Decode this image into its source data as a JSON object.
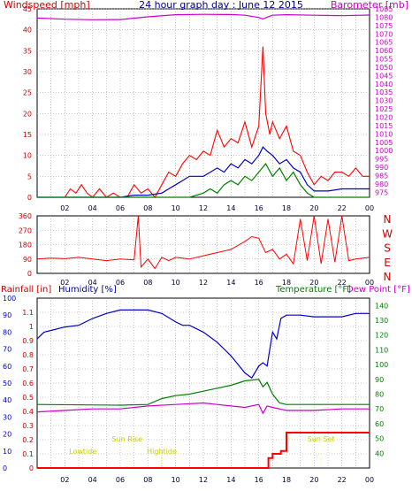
{
  "chart_data": [
    {
      "id": "wind-baro",
      "type": "line",
      "title": "24 hour graph day : June 12 2015",
      "left_axis_label": "Windspeed [mph]",
      "right_axis_label": "Barometer [mb]",
      "xlabels": [
        "02",
        "04",
        "06",
        "08",
        "10",
        "12",
        "14",
        "16",
        "18",
        "20",
        "22",
        "00"
      ],
      "x_range": [
        0,
        24
      ],
      "y_left_range": [
        0,
        45
      ],
      "y_left_ticks": [
        "0",
        "5",
        "10",
        "15",
        "20",
        "25",
        "30",
        "35",
        "40",
        "45"
      ],
      "y_right_range": [
        972,
        1085
      ],
      "y_right_ticks": [
        "975",
        "980",
        "985",
        "990",
        "995",
        "1000",
        "1005",
        "1010",
        "1015",
        "1020",
        "1025",
        "1030",
        "1035",
        "1040",
        "1045",
        "1050",
        "1055",
        "1060",
        "1065",
        "1070",
        "1075",
        "1080",
        "1085"
      ],
      "colors": {
        "gust": "#ff0000",
        "average": "#0000cc",
        "low": "#008000",
        "barometer": "#cc00cc"
      },
      "series": [
        {
          "key": "gust",
          "x": [
            0,
            2,
            2.4,
            2.8,
            3.2,
            3.6,
            4,
            4.5,
            5,
            5.5,
            6,
            6.5,
            7,
            7.5,
            8,
            8.5,
            9,
            9.5,
            10,
            10.5,
            11,
            11.5,
            12,
            12.5,
            13,
            13.5,
            14,
            14.5,
            15,
            15.5,
            16,
            16.3,
            16.5,
            16.8,
            17,
            17.5,
            18,
            18.5,
            19,
            19.5,
            20,
            20.5,
            21,
            21.5,
            22,
            22.5,
            23,
            23.5,
            24
          ],
          "values": [
            0,
            0,
            2,
            1,
            3,
            1,
            0,
            2,
            0,
            1,
            0,
            0,
            3,
            1,
            2,
            0,
            3,
            6,
            5,
            8,
            10,
            9,
            11,
            10,
            16,
            12,
            14,
            13,
            18,
            12,
            17,
            36,
            20,
            15,
            18,
            14,
            17,
            11,
            10,
            6,
            3,
            5,
            4,
            6,
            6,
            5,
            7,
            5,
            5
          ]
        },
        {
          "key": "average",
          "x": [
            0,
            3,
            5,
            6,
            7,
            8,
            9,
            9.5,
            10,
            10.5,
            11,
            12,
            12.5,
            13,
            13.5,
            14,
            14.5,
            15,
            15.5,
            16,
            16.3,
            16.6,
            17,
            17.5,
            18,
            18.5,
            19,
            19.5,
            20,
            21,
            22,
            23,
            24
          ],
          "values": [
            0,
            0,
            0,
            0,
            0.5,
            0.5,
            1,
            2,
            3,
            4,
            5,
            5,
            6,
            7,
            6,
            8,
            7,
            9,
            8,
            10,
            12,
            11,
            10,
            8,
            9,
            7,
            6,
            3,
            1.5,
            1.5,
            2,
            2,
            2
          ]
        },
        {
          "key": "low",
          "x": [
            0,
            8,
            10,
            11,
            12,
            12.5,
            13,
            13.5,
            14,
            14.5,
            15,
            15.5,
            16,
            16.5,
            17,
            17.5,
            18,
            18.5,
            19,
            19.5,
            20,
            24
          ],
          "values": [
            0,
            0,
            0,
            0,
            1,
            2,
            1,
            3,
            4,
            3,
            5,
            4,
            6,
            8,
            5,
            7,
            4,
            6,
            3,
            1,
            0,
            0
          ]
        },
        {
          "key": "barometer",
          "x": [
            0,
            2,
            4,
            6,
            8,
            10,
            12,
            14,
            15,
            16,
            16.3,
            16.6,
            17,
            18,
            20,
            22,
            24
          ],
          "values": [
            1079.5,
            1078.8,
            1078.5,
            1078.6,
            1080.2,
            1081.5,
            1081.7,
            1081.6,
            1081.2,
            1079.8,
            1078.9,
            1080.0,
            1081.2,
            1081.5,
            1081.2,
            1080.9,
            1081.3
          ]
        }
      ]
    },
    {
      "id": "wind-dir",
      "type": "line",
      "xlabels": [
        "02",
        "04",
        "06",
        "08",
        "10",
        "12",
        "14",
        "16",
        "18",
        "20",
        "22",
        "00"
      ],
      "x_range": [
        0,
        24
      ],
      "y_range": [
        0,
        360
      ],
      "y_ticks": [
        "0",
        "90",
        "180",
        "270",
        "360"
      ],
      "compass_labels": [
        "N",
        "W",
        "S",
        "E",
        "N"
      ],
      "color": "#ff0000",
      "series": [
        {
          "key": "direction",
          "x": [
            0,
            1,
            2,
            3,
            4,
            5,
            6,
            7,
            7.3,
            7.5,
            8,
            8.5,
            9,
            9.5,
            10,
            11,
            12,
            13,
            14,
            15,
            15.5,
            16,
            16.5,
            17,
            17.5,
            18,
            18.5,
            19,
            19.5,
            20,
            20.5,
            21,
            21.5,
            22,
            22.5,
            23,
            24
          ],
          "values": [
            90,
            95,
            92,
            100,
            90,
            80,
            90,
            85,
            360,
            40,
            90,
            30,
            100,
            80,
            100,
            90,
            110,
            130,
            150,
            200,
            230,
            220,
            130,
            150,
            90,
            120,
            60,
            340,
            80,
            360,
            60,
            340,
            70,
            360,
            80,
            90,
            100
          ]
        }
      ]
    },
    {
      "id": "rain-hum-temp",
      "type": "line",
      "left_axis1_label": "Rainfall [in]",
      "left_axis2_label": "Humidity [%]",
      "right_axis1_label": "Temperature [°F]",
      "right_axis2_label": "Dew Point [°F]",
      "xlabels": [
        "02",
        "04",
        "06",
        "08",
        "10",
        "12",
        "14",
        "16",
        "18",
        "20",
        "22",
        "00"
      ],
      "x_range": [
        0,
        24
      ],
      "rain_range": [
        0,
        1.2
      ],
      "rain_ticks": [
        "0",
        "0.1",
        "0.2",
        "0.3",
        "0.4",
        "0.5",
        "0.6",
        "0.7",
        "0.8",
        "0.9",
        "1",
        "1.1"
      ],
      "humidity_range": [
        0,
        100
      ],
      "humidity_ticks": [
        "0",
        "10",
        "20",
        "30",
        "40",
        "50",
        "60",
        "70",
        "80",
        "90",
        "100"
      ],
      "temp_range": [
        30,
        145
      ],
      "temp_ticks": [
        "40",
        "50",
        "60",
        "70",
        "80",
        "90",
        "100",
        "110",
        "120",
        "130",
        "140"
      ],
      "annotations": [
        {
          "text": "Lowtide",
          "x": 3.3
        },
        {
          "text": "Sun Rise",
          "x": 6.5
        },
        {
          "text": "Hightide",
          "x": 9.0
        },
        {
          "text": "Sun Set",
          "x": 20.5
        }
      ],
      "colors": {
        "rainfall": "#ff0000",
        "humidity": "#0000cc",
        "temperature": "#008000",
        "dewpoint": "#cc00cc"
      },
      "series": [
        {
          "key": "rainfall",
          "x": [
            0,
            16.5,
            16.7,
            17,
            17.3,
            17.6,
            18,
            24
          ],
          "values": [
            0,
            0,
            0.07,
            0.1,
            0.1,
            0.12,
            0.25,
            0.25
          ]
        },
        {
          "key": "humidity",
          "x": [
            0,
            0.5,
            1,
            2,
            3,
            4,
            5,
            6,
            7,
            8,
            9,
            10,
            10.5,
            11,
            12,
            13,
            14,
            15,
            15.5,
            16,
            16.3,
            16.6,
            17,
            17.3,
            17.6,
            18,
            19,
            20,
            22,
            23,
            24
          ],
          "values": [
            76,
            80,
            81,
            83,
            84,
            88,
            91,
            93,
            93,
            93,
            91,
            86,
            84,
            84,
            80,
            74,
            66,
            56,
            53,
            60,
            62,
            60,
            80,
            76,
            88,
            90,
            90,
            89,
            89,
            91,
            91
          ]
        },
        {
          "key": "temperature",
          "x": [
            0,
            6,
            8,
            9,
            10,
            11,
            12,
            13,
            14,
            15,
            16,
            16.3,
            16.6,
            17,
            17.5,
            18,
            20,
            22,
            24
          ],
          "values": [
            73,
            72.5,
            73,
            77,
            79,
            80,
            82,
            84,
            86,
            89,
            90,
            85,
            88,
            80,
            74,
            73,
            73,
            73,
            73
          ]
        },
        {
          "key": "dewpoint",
          "x": [
            0,
            2,
            4,
            6,
            8,
            10,
            12,
            13,
            14,
            15,
            16,
            16.3,
            16.6,
            17,
            18,
            20,
            22,
            24
          ],
          "values": [
            68,
            69,
            70,
            70,
            72,
            73,
            74,
            73,
            72,
            71,
            73,
            67,
            72,
            71,
            69,
            69,
            70,
            70
          ]
        }
      ]
    }
  ]
}
